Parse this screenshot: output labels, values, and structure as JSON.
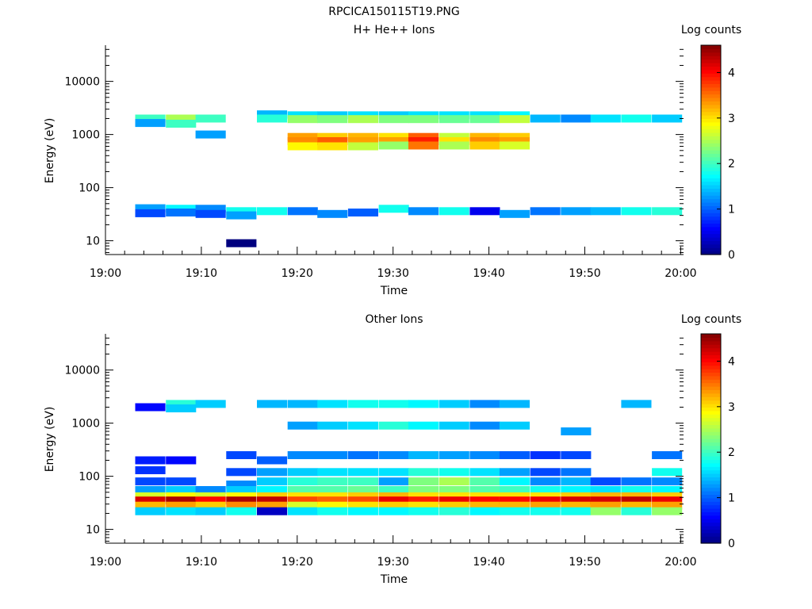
{
  "figure_title": "RPCICA150115T19.PNG",
  "colormap": [
    "#00007f",
    "#0000ff",
    "#007fff",
    "#00ffff",
    "#7fff7f",
    "#ffff00",
    "#ff7f00",
    "#ff0000",
    "#7f0000"
  ],
  "chart_data": [
    {
      "type": "heatmap",
      "title": "H+ He++ Ions",
      "xlabel": "Time",
      "ylabel": "Energy (eV)",
      "colorbar_label": "Log counts",
      "colorbar_range": [
        0,
        4.6
      ],
      "colorbar_ticks": [
        "0",
        "1",
        "2",
        "3",
        "4"
      ],
      "x_ticks": [
        "19:00",
        "19:10",
        "19:20",
        "19:30",
        "19:40",
        "19:50",
        "20:00"
      ],
      "y_scale": "log",
      "y_ticks": [
        "10",
        "100",
        "1000",
        "10000"
      ],
      "ylim": [
        5.5,
        48000
      ],
      "xlim_minutes": [
        0,
        60.3
      ],
      "time_bins_start_min": [
        3.1,
        6.3,
        9.4,
        12.6,
        15.8,
        19.0,
        22.1,
        25.3,
        28.5,
        31.6,
        34.8,
        38.0,
        41.1,
        44.3,
        47.5,
        50.6,
        53.8,
        57.0
      ],
      "bin_width_min": 3.15,
      "cells": [
        [
          0,
          2000,
          2
        ],
        [
          0,
          1650,
          1.3
        ],
        [
          0,
          41,
          1.3
        ],
        [
          0,
          33,
          0.9
        ],
        [
          1,
          2000,
          2.5
        ],
        [
          1,
          1600,
          2
        ],
        [
          1,
          40,
          1.7
        ],
        [
          1,
          34,
          1.1
        ],
        [
          2,
          2000,
          2
        ],
        [
          2,
          1000,
          1.3
        ],
        [
          2,
          40,
          1.2
        ],
        [
          2,
          32,
          0.9
        ],
        [
          3,
          36,
          1.8
        ],
        [
          3,
          30,
          1.3
        ],
        [
          3,
          9,
          0
        ],
        [
          4,
          2400,
          1.4
        ],
        [
          4,
          2000,
          1.9
        ],
        [
          4,
          36,
          1.8
        ],
        [
          5,
          2300,
          1.6
        ],
        [
          5,
          1950,
          2.4
        ],
        [
          5,
          900,
          3.3
        ],
        [
          5,
          750,
          3.4
        ],
        [
          5,
          600,
          2.9
        ],
        [
          5,
          36,
          1.1
        ],
        [
          6,
          2300,
          1.5
        ],
        [
          6,
          1950,
          2.3
        ],
        [
          6,
          900,
          3.1
        ],
        [
          6,
          750,
          3.6
        ],
        [
          6,
          600,
          3
        ],
        [
          6,
          32,
          1.2
        ],
        [
          7,
          2300,
          1.6
        ],
        [
          7,
          1950,
          2.5
        ],
        [
          7,
          900,
          3.2
        ],
        [
          7,
          750,
          3.3
        ],
        [
          7,
          600,
          2.6
        ],
        [
          7,
          34,
          1
        ],
        [
          8,
          2300,
          1.5
        ],
        [
          8,
          1950,
          2.3
        ],
        [
          8,
          900,
          3
        ],
        [
          8,
          750,
          3.3
        ],
        [
          8,
          620,
          2.4
        ],
        [
          8,
          40,
          1.8
        ],
        [
          9,
          2300,
          1.6
        ],
        [
          9,
          1950,
          2.3
        ],
        [
          9,
          900,
          3.6
        ],
        [
          9,
          750,
          3.9
        ],
        [
          9,
          620,
          3.5
        ],
        [
          9,
          36,
          1.2
        ],
        [
          10,
          2300,
          1.6
        ],
        [
          10,
          1950,
          2.2
        ],
        [
          10,
          900,
          2.6
        ],
        [
          10,
          750,
          3
        ],
        [
          10,
          620,
          2.5
        ],
        [
          10,
          36,
          1.8
        ],
        [
          11,
          2300,
          1.6
        ],
        [
          11,
          1950,
          2.2
        ],
        [
          11,
          900,
          3.2
        ],
        [
          11,
          750,
          3.4
        ],
        [
          11,
          620,
          3.1
        ],
        [
          11,
          36,
          0.5
        ],
        [
          12,
          2300,
          1.7
        ],
        [
          12,
          1950,
          2.6
        ],
        [
          12,
          900,
          3.1
        ],
        [
          12,
          750,
          3.3
        ],
        [
          12,
          620,
          2.7
        ],
        [
          12,
          32,
          1.3
        ],
        [
          13,
          2000,
          1.4
        ],
        [
          13,
          36,
          1.1
        ],
        [
          14,
          2000,
          1.2
        ],
        [
          14,
          36,
          1.3
        ],
        [
          15,
          2000,
          1.6
        ],
        [
          15,
          36,
          1.4
        ],
        [
          16,
          2000,
          1.8
        ],
        [
          16,
          36,
          1.8
        ],
        [
          17,
          2000,
          1.5
        ],
        [
          17,
          36,
          1.9
        ]
      ]
    },
    {
      "type": "heatmap",
      "title": "Other Ions",
      "xlabel": "Time",
      "ylabel": "Energy (eV)",
      "colorbar_label": "Log counts",
      "colorbar_range": [
        0,
        4.6
      ],
      "colorbar_ticks": [
        "0",
        "1",
        "2",
        "3",
        "4"
      ],
      "x_ticks": [
        "19:00",
        "19:10",
        "19:20",
        "19:30",
        "19:40",
        "19:50",
        "20:00"
      ],
      "y_scale": "log",
      "y_ticks": [
        "10",
        "100",
        "1000",
        "10000"
      ],
      "ylim": [
        5.5,
        48000
      ],
      "xlim_minutes": [
        0,
        60.3
      ],
      "time_bins_start_min": [
        3.1,
        6.3,
        9.4,
        12.6,
        15.8,
        19.0,
        22.1,
        25.3,
        28.5,
        31.6,
        34.8,
        38.0,
        41.1,
        44.3,
        47.5,
        50.6,
        53.8,
        57.0
      ],
      "bin_width_min": 3.15,
      "cells": [
        [
          0,
          2000,
          0.6
        ],
        [
          0,
          200,
          0.7
        ],
        [
          0,
          130,
          0.8
        ],
        [
          0,
          80,
          0.9
        ],
        [
          0,
          55,
          1.3
        ],
        [
          0,
          42,
          2.7
        ],
        [
          0,
          35,
          4.2
        ],
        [
          0,
          28,
          3.2
        ],
        [
          0,
          22,
          1.5
        ],
        [
          1,
          2300,
          1.9
        ],
        [
          1,
          1900,
          1.5
        ],
        [
          1,
          200,
          0.6
        ],
        [
          1,
          80,
          0.9
        ],
        [
          1,
          55,
          1.5
        ],
        [
          1,
          42,
          2.9
        ],
        [
          1,
          35,
          4.4
        ],
        [
          1,
          28,
          3.3
        ],
        [
          1,
          22,
          1.6
        ],
        [
          2,
          2300,
          1.5
        ],
        [
          2,
          55,
          1.2
        ],
        [
          2,
          42,
          2.7
        ],
        [
          2,
          35,
          4
        ],
        [
          2,
          28,
          3.1
        ],
        [
          2,
          22,
          1.5
        ],
        [
          3,
          250,
          0.9
        ],
        [
          3,
          120,
          0.9
        ],
        [
          3,
          70,
          1.2
        ],
        [
          3,
          55,
          1.5
        ],
        [
          3,
          42,
          2.9
        ],
        [
          3,
          35,
          4.4
        ],
        [
          3,
          28,
          3.4
        ],
        [
          3,
          22,
          1.8
        ],
        [
          4,
          2300,
          1.4
        ],
        [
          4,
          200,
          1
        ],
        [
          4,
          120,
          1.3
        ],
        [
          4,
          80,
          1.5
        ],
        [
          4,
          55,
          1.7
        ],
        [
          4,
          42,
          3.1
        ],
        [
          4,
          35,
          4.3
        ],
        [
          4,
          28,
          3.3
        ],
        [
          4,
          22,
          0.3
        ],
        [
          5,
          2300,
          1.4
        ],
        [
          5,
          900,
          1.3
        ],
        [
          5,
          250,
          1.2
        ],
        [
          5,
          120,
          1.5
        ],
        [
          5,
          80,
          1.9
        ],
        [
          5,
          55,
          2.1
        ],
        [
          5,
          42,
          3
        ],
        [
          5,
          35,
          3.7
        ],
        [
          5,
          28,
          2.7
        ],
        [
          5,
          22,
          1.6
        ],
        [
          6,
          2300,
          1.6
        ],
        [
          6,
          900,
          1.5
        ],
        [
          6,
          250,
          1.2
        ],
        [
          6,
          120,
          1.6
        ],
        [
          6,
          80,
          2
        ],
        [
          6,
          55,
          2.1
        ],
        [
          6,
          42,
          3
        ],
        [
          6,
          35,
          3.6
        ],
        [
          6,
          28,
          2.9
        ],
        [
          6,
          22,
          1.8
        ],
        [
          7,
          2300,
          1.8
        ],
        [
          7,
          900,
          1.6
        ],
        [
          7,
          250,
          1.1
        ],
        [
          7,
          120,
          1.6
        ],
        [
          7,
          80,
          2
        ],
        [
          7,
          55,
          2.2
        ],
        [
          7,
          42,
          3.1
        ],
        [
          7,
          35,
          3.7
        ],
        [
          7,
          28,
          3
        ],
        [
          7,
          22,
          1.7
        ],
        [
          8,
          2300,
          1.8
        ],
        [
          8,
          900,
          1.9
        ],
        [
          8,
          250,
          1.2
        ],
        [
          8,
          120,
          1.6
        ],
        [
          8,
          80,
          1.3
        ],
        [
          8,
          55,
          2
        ],
        [
          8,
          42,
          3.2
        ],
        [
          8,
          35,
          4.1
        ],
        [
          8,
          28,
          3.1
        ],
        [
          8,
          22,
          1.7
        ],
        [
          9,
          2300,
          1.7
        ],
        [
          9,
          900,
          1.7
        ],
        [
          9,
          250,
          1.4
        ],
        [
          9,
          120,
          1.9
        ],
        [
          9,
          80,
          2.3
        ],
        [
          9,
          55,
          2.3
        ],
        [
          9,
          42,
          3
        ],
        [
          9,
          35,
          3.9
        ],
        [
          9,
          28,
          3
        ],
        [
          9,
          22,
          1.8
        ],
        [
          10,
          2300,
          1.5
        ],
        [
          10,
          900,
          1.5
        ],
        [
          10,
          250,
          1.3
        ],
        [
          10,
          120,
          1.8
        ],
        [
          10,
          80,
          2.5
        ],
        [
          10,
          55,
          2.3
        ],
        [
          10,
          42,
          3
        ],
        [
          10,
          35,
          4.1
        ],
        [
          10,
          28,
          3.1
        ],
        [
          10,
          22,
          1.9
        ],
        [
          11,
          2300,
          1.2
        ],
        [
          11,
          900,
          1.2
        ],
        [
          11,
          250,
          1.2
        ],
        [
          11,
          120,
          1.6
        ],
        [
          11,
          80,
          2.1
        ],
        [
          11,
          55,
          2.1
        ],
        [
          11,
          42,
          3
        ],
        [
          11,
          35,
          4
        ],
        [
          11,
          28,
          3.2
        ],
        [
          11,
          22,
          1.7
        ],
        [
          12,
          2300,
          1.4
        ],
        [
          12,
          900,
          1.5
        ],
        [
          12,
          250,
          1
        ],
        [
          12,
          120,
          1.3
        ],
        [
          12,
          80,
          1.7
        ],
        [
          12,
          55,
          2
        ],
        [
          12,
          42,
          3
        ],
        [
          12,
          35,
          4
        ],
        [
          12,
          28,
          3.2
        ],
        [
          12,
          22,
          1.8
        ],
        [
          13,
          250,
          0.8
        ],
        [
          13,
          120,
          0.9
        ],
        [
          13,
          80,
          1.2
        ],
        [
          13,
          55,
          1.8
        ],
        [
          13,
          42,
          3
        ],
        [
          13,
          35,
          4.1
        ],
        [
          13,
          28,
          3.3
        ],
        [
          13,
          22,
          1.8
        ],
        [
          14,
          700,
          1.3
        ],
        [
          14,
          250,
          0.9
        ],
        [
          14,
          120,
          1.1
        ],
        [
          14,
          80,
          1.4
        ],
        [
          14,
          55,
          1.7
        ],
        [
          14,
          42,
          3.1
        ],
        [
          14,
          35,
          4.2
        ],
        [
          14,
          28,
          3.2
        ],
        [
          14,
          22,
          1.8
        ],
        [
          15,
          80,
          0.9
        ],
        [
          15,
          55,
          1.6
        ],
        [
          15,
          42,
          3.2
        ],
        [
          15,
          35,
          4.2
        ],
        [
          15,
          28,
          3.3
        ],
        [
          15,
          22,
          2.4
        ],
        [
          16,
          2300,
          1.4
        ],
        [
          16,
          80,
          1.1
        ],
        [
          16,
          55,
          1.8
        ],
        [
          16,
          42,
          3.2
        ],
        [
          16,
          35,
          4.3
        ],
        [
          16,
          28,
          3.2
        ],
        [
          16,
          22,
          1.9
        ],
        [
          17,
          250,
          1.1
        ],
        [
          17,
          120,
          1.8
        ],
        [
          17,
          80,
          1.2
        ],
        [
          17,
          55,
          1.7
        ],
        [
          17,
          42,
          3.1
        ],
        [
          17,
          35,
          4.1
        ],
        [
          17,
          28,
          3.3
        ],
        [
          17,
          22,
          2.4
        ]
      ]
    }
  ]
}
